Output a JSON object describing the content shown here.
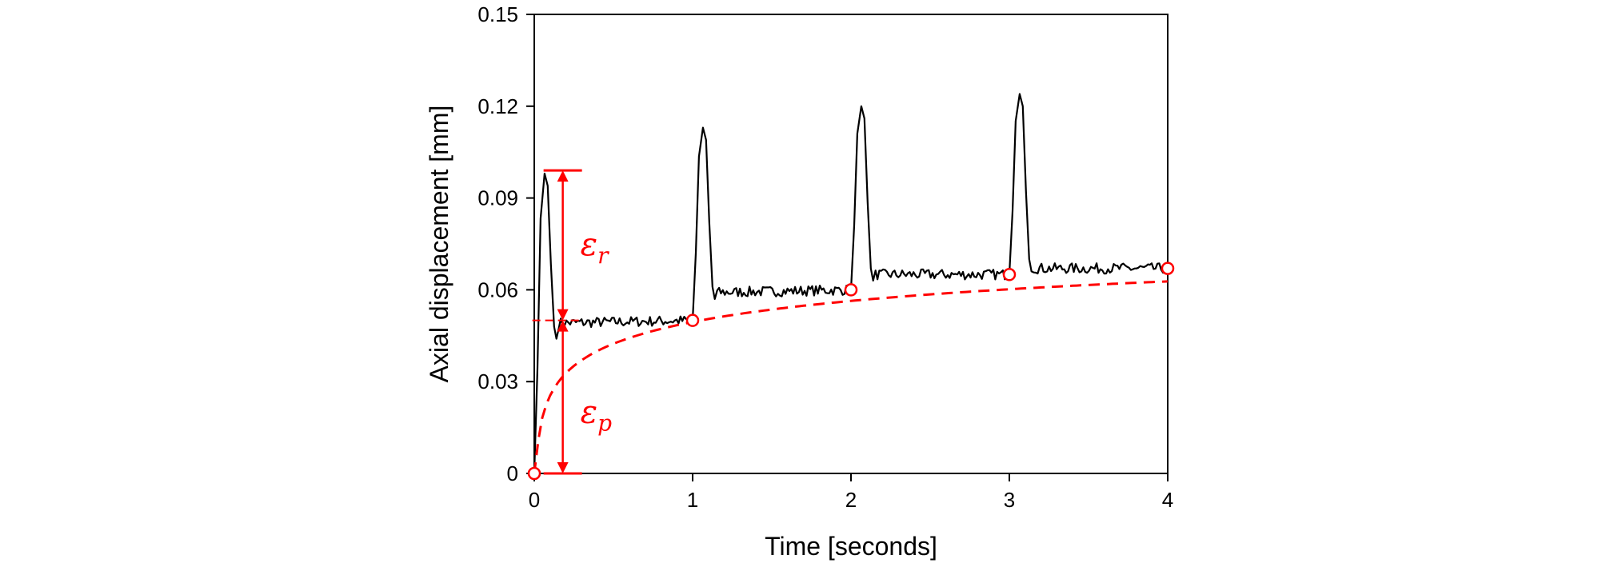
{
  "chart_data": {
    "type": "line",
    "xlabel": "Time [seconds]",
    "ylabel": "Axial displacement [mm]",
    "xlim": [
      0,
      4
    ],
    "ylim": [
      0,
      0.15
    ],
    "xticks": [
      "0",
      "1",
      "2",
      "3",
      "4"
    ],
    "yticks": [
      "0",
      "0.03",
      "0.06",
      "0.09",
      "0.12",
      "0.15"
    ],
    "xtick_values": [
      0,
      1,
      2,
      3,
      4
    ],
    "ytick_values": [
      0,
      0.03,
      0.06,
      0.09,
      0.12,
      0.15
    ],
    "grid": false,
    "series": [
      {
        "style": "solid",
        "color": "#000000",
        "cycles": [
          {
            "start": 0,
            "peak": 0.098,
            "min_after": 0.044,
            "baseline": 0.049,
            "end_level": 0.05
          },
          {
            "start": 1,
            "peak": 0.113,
            "min_after": 0.057,
            "baseline": 0.059,
            "end_level": 0.06
          },
          {
            "start": 2,
            "peak": 0.12,
            "min_after": 0.063,
            "baseline": 0.065,
            "end_level": 0.065
          },
          {
            "start": 3,
            "peak": 0.124,
            "min_after": 0.066,
            "baseline": 0.067,
            "end_level": 0.067
          }
        ]
      },
      {
        "style": "dashed",
        "color": "#ff0000",
        "markers": "open-circle",
        "x": [
          0,
          1,
          2,
          3,
          4
        ],
        "y": [
          0,
          0.05,
          0.06,
          0.065,
          0.067
        ]
      }
    ],
    "annotations": [
      {
        "symbol": "ε",
        "subscript": "r",
        "from_y": 0.05,
        "to_y": 0.099,
        "x": 0.18
      },
      {
        "symbol": "ε",
        "subscript": "p",
        "from_y": 0,
        "to_y": 0.05,
        "x": 0.18
      }
    ],
    "annotation_color": "#ff0000"
  }
}
